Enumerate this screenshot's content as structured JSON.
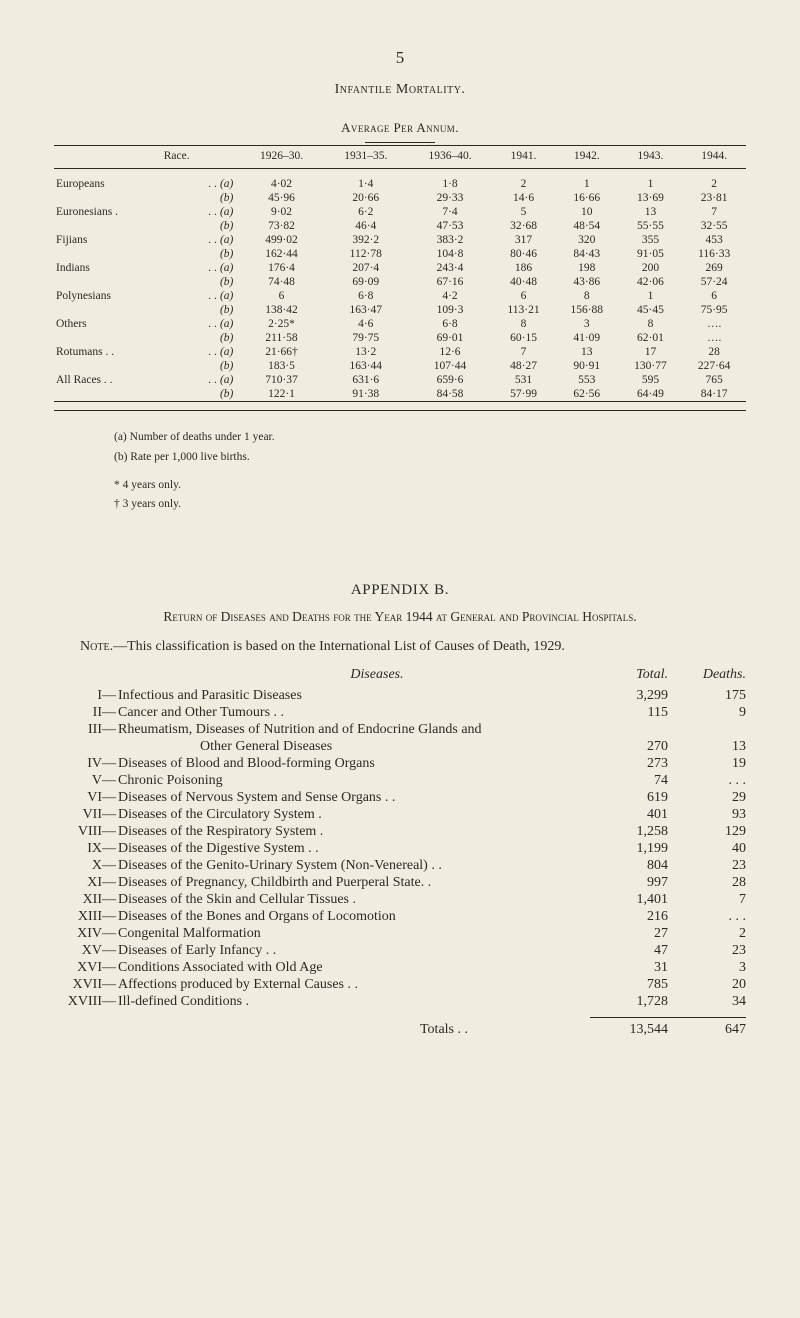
{
  "page_number": "5",
  "section_title": "Infantile Mortality.",
  "table_a": {
    "subtitle": "Average Per Annum.",
    "columns": [
      "Race.",
      "",
      "1926–30.",
      "1931–35.",
      "1936–40.",
      "1941.",
      "1942.",
      "1943.",
      "1944."
    ],
    "groups": [
      {
        "race": "Europeans",
        "a": [
          "4·02",
          "1·4",
          "1·8",
          "2",
          "1",
          "1",
          "2"
        ],
        "b": [
          "45·96",
          "20·66",
          "29·33",
          "14·6",
          "16·66",
          "13·69",
          "23·81"
        ]
      },
      {
        "race": "Euronesians .",
        "a": [
          "9·02",
          "6·2",
          "7·4",
          "5",
          "10",
          "13",
          "7"
        ],
        "b": [
          "73·82",
          "46·4",
          "47·53",
          "32·68",
          "48·54",
          "55·55",
          "32·55"
        ]
      },
      {
        "race": "Fijians",
        "a": [
          "499·02",
          "392·2",
          "383·2",
          "317",
          "320",
          "355",
          "453"
        ],
        "b": [
          "162·44",
          "112·78",
          "104·8",
          "80·46",
          "84·43",
          "91·05",
          "116·33"
        ]
      },
      {
        "race": "Indians",
        "a": [
          "176·4",
          "207·4",
          "243·4",
          "186",
          "198",
          "200",
          "269"
        ],
        "b": [
          "74·48",
          "69·09",
          "67·16",
          "40·48",
          "43·86",
          "42·06",
          "57·24"
        ]
      },
      {
        "race": "Polynesians",
        "a": [
          "6",
          "6·8",
          "4·2",
          "6",
          "8",
          "1",
          "6"
        ],
        "b": [
          "138·42",
          "163·47",
          "109·3",
          "113·21",
          "156·88",
          "45·45",
          "75·95"
        ]
      },
      {
        "race": "Others",
        "a": [
          "2·25*",
          "4·6",
          "6·8",
          "8",
          "3",
          "8",
          "…."
        ],
        "b": [
          "211·58",
          "79·75",
          "69·01",
          "60·15",
          "41·09",
          "62·01",
          "…."
        ]
      },
      {
        "race": "Rotumans . .",
        "a": [
          "21·66†",
          "13·2",
          "12·6",
          "7",
          "13",
          "17",
          "28"
        ],
        "b": [
          "183·5",
          "163·44",
          "107·44",
          "48·27",
          "90·91",
          "130·77",
          "227·64"
        ]
      },
      {
        "race": "All Races . .",
        "a": [
          "710·37",
          "631·6",
          "659·6",
          "531",
          "553",
          "595",
          "765"
        ],
        "b": [
          "122·1",
          "91·38",
          "84·58",
          "57·99",
          "62·56",
          "64·49",
          "84·17"
        ]
      }
    ],
    "row_label_a": ". . (a)",
    "row_label_b": "(b)",
    "footnotes": [
      "(a) Number of deaths under 1 year.",
      "(b) Rate per 1,000 live births.",
      "* 4 years only.",
      "† 3 years only."
    ]
  },
  "appendix": {
    "title": "APPENDIX B.",
    "subtitle": "Return of Diseases and Deaths for the Year 1944 at General and Provincial Hospitals.",
    "note": "Note.—This classification is based on the International List of Causes of Death, 1929.",
    "headers": {
      "diseases": "Diseases.",
      "total": "Total.",
      "deaths": "Deaths."
    },
    "rows": [
      {
        "rn": "I—",
        "desc": "Infectious and Parasitic Diseases",
        "total": "3,299",
        "deaths": "175"
      },
      {
        "rn": "II—",
        "desc": "Cancer and Other Tumours . .",
        "total": "115",
        "deaths": "9"
      },
      {
        "rn": "III—",
        "desc": "Rheumatism, Diseases of Nutrition and of Endocrine Glands and",
        "total": "",
        "deaths": ""
      },
      {
        "rn": "",
        "indent": true,
        "desc": "Other General Diseases",
        "total": "270",
        "deaths": "13"
      },
      {
        "rn": "IV—",
        "desc": "Diseases of Blood and Blood-forming Organs",
        "total": "273",
        "deaths": "19"
      },
      {
        "rn": "V—",
        "desc": "Chronic Poisoning",
        "total": "74",
        "deaths": ". . ."
      },
      {
        "rn": "VI—",
        "desc": "Diseases of Nervous System and Sense Organs . .",
        "total": "619",
        "deaths": "29"
      },
      {
        "rn": "VII—",
        "desc": "Diseases of the Circulatory System .",
        "total": "401",
        "deaths": "93"
      },
      {
        "rn": "VIII—",
        "desc": "Diseases of the Respiratory System .",
        "total": "1,258",
        "deaths": "129"
      },
      {
        "rn": "IX—",
        "desc": "Diseases of the Digestive System . .",
        "total": "1,199",
        "deaths": "40"
      },
      {
        "rn": "X—",
        "desc": "Diseases of the Genito-Urinary System (Non-Venereal) . .",
        "total": "804",
        "deaths": "23"
      },
      {
        "rn": "XI—",
        "desc": "Diseases of Pregnancy, Childbirth and Puerperal State. .",
        "total": "997",
        "deaths": "28"
      },
      {
        "rn": "XII—",
        "desc": "Diseases of the Skin and Cellular Tissues .",
        "total": "1,401",
        "deaths": "7"
      },
      {
        "rn": "XIII—",
        "desc": "Diseases of the Bones and Organs of Locomotion",
        "total": "216",
        "deaths": ". . ."
      },
      {
        "rn": "XIV—",
        "desc": "Congenital Malformation",
        "total": "27",
        "deaths": "2"
      },
      {
        "rn": "XV—",
        "desc": "Diseases of Early Infancy   . .",
        "total": "47",
        "deaths": "23"
      },
      {
        "rn": "XVI—",
        "desc": "Conditions Associated with Old Age",
        "total": "31",
        "deaths": "3"
      },
      {
        "rn": "XVII—",
        "desc": "Affections produced by External Causes . .",
        "total": "785",
        "deaths": "20"
      },
      {
        "rn": "XVIII—",
        "desc": "Ill-defined Conditions .",
        "total": "1,728",
        "deaths": "34"
      }
    ],
    "totals_label": "Totals . .",
    "totals_total": "13,544",
    "totals_deaths": "647"
  }
}
